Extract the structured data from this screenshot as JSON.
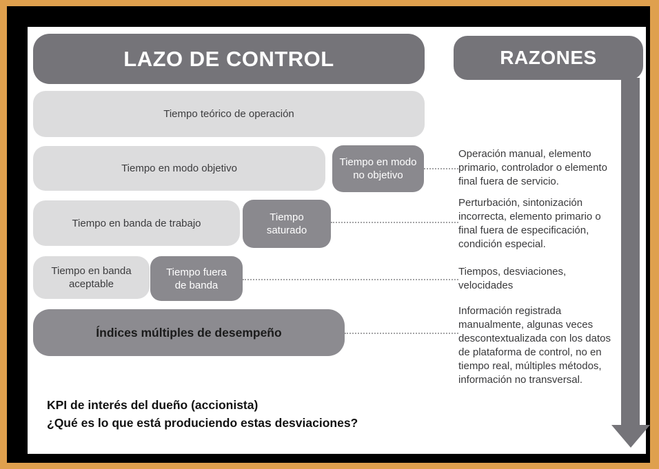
{
  "colors": {
    "border_orange": "#DFA04E",
    "border_black": "#000000",
    "background": "#FFFFFF",
    "header_gray": "#757479",
    "dark_box_gray": "#8A898E",
    "light_bar_gray": "#DCDCDD",
    "indices_bar_gray": "#8C8B90",
    "arrow_gray": "#757479",
    "dotted_line_gray": "#A3A3A5"
  },
  "headers": {
    "control_loop": "LAZO DE CONTROL",
    "reasons": "RAZONES"
  },
  "bars": {
    "theoretical_time": "Tiempo teórico de operación",
    "target_mode_time": "Tiempo en modo objetivo",
    "non_target_mode_time": "Tiempo en modo\nno objetivo",
    "working_band_time": "Tiempo en banda de trabajo",
    "saturated_time": "Tiempo\nsaturado",
    "acceptable_band_time": "Tiempo en banda\naceptable",
    "out_of_band_time": "Tiempo fuera\nde banda",
    "performance_indices": "Índices múltiples de desempeño"
  },
  "reasons": {
    "non_target_mode": "Operación manual, elemento\nprimario, controlador o elemento\nfinal fuera de servicio.",
    "saturated": "Perturbación, sintonización\nincorrecta, elemento primario o\nfinal fuera de especificación,\ncondición especial.",
    "out_of_band": "Tiempos, desviaciones,\nvelocidades",
    "indices": "Información registrada\nmanualmente, algunas veces\ndescontextualizada con los datos\nde plataforma de control, no en\ntiempo real, múltiples métodos,\ninformación no transversal."
  },
  "footer": {
    "line1": "KPI de interés del dueño (accionista)",
    "line2": "¿Qué es lo que está produciendo estas desviaciones?"
  }
}
